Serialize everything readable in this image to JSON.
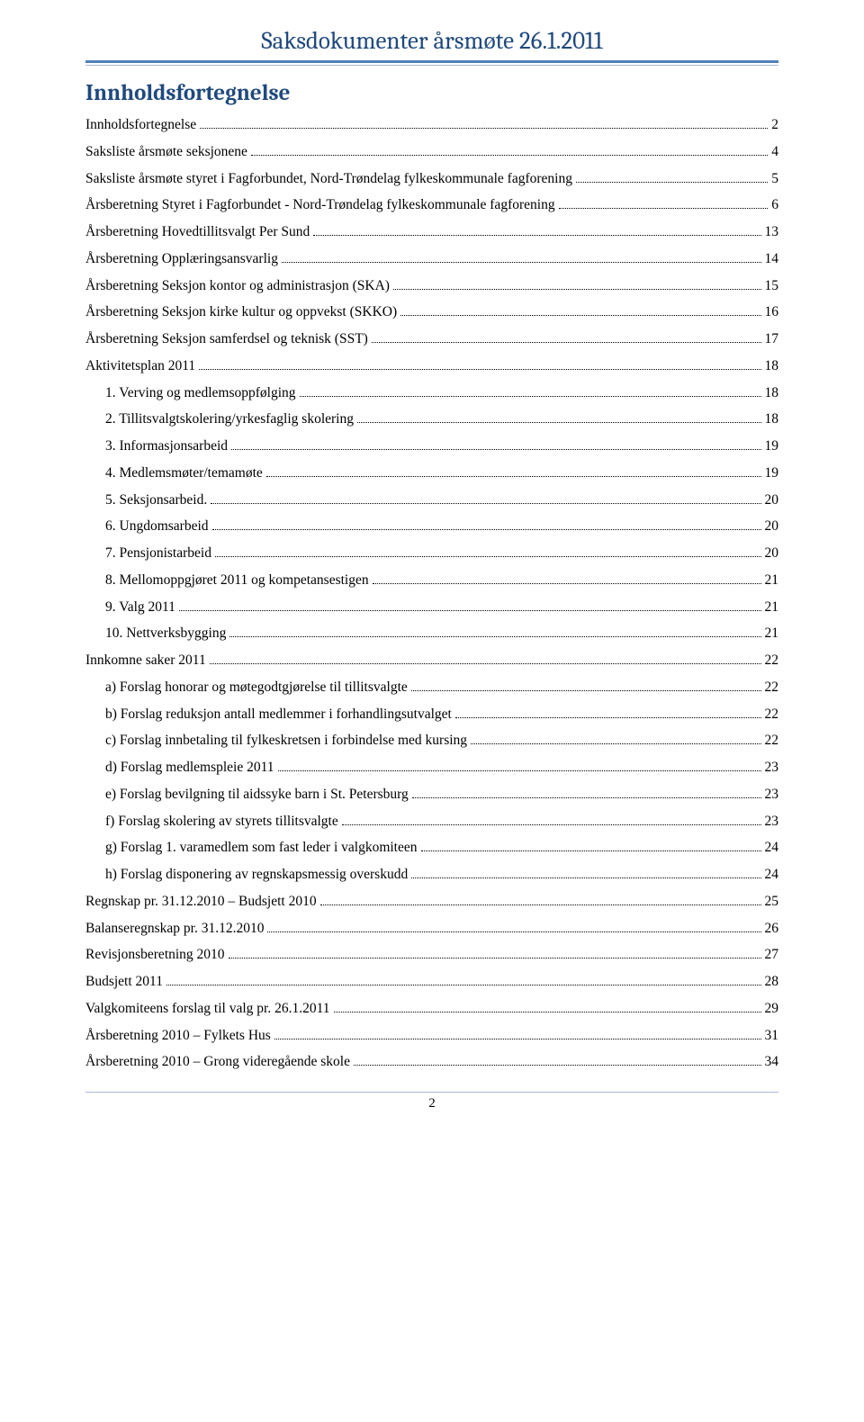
{
  "document": {
    "title": "Saksdokumenter årsmøte 26.1.2011",
    "section_heading": "Innholdsfortegnelse",
    "page_number": "2",
    "title_color": "#1f497d",
    "underline_color": "#4f81bd",
    "font_body": "Times New Roman",
    "font_heading": "Cambria"
  },
  "toc": [
    {
      "label": "Innholdsfortegnelse",
      "page": "2",
      "indent": 0
    },
    {
      "label": "Saksliste årsmøte seksjonene",
      "page": "4",
      "indent": 0
    },
    {
      "label": "Saksliste årsmøte styret i Fagforbundet, Nord-Trøndelag fylkeskommunale fagforening",
      "page": "5",
      "indent": 0
    },
    {
      "label": "Årsberetning Styret i Fagforbundet - Nord-Trøndelag fylkeskommunale fagforening",
      "page": "6",
      "indent": 0
    },
    {
      "label": "Årsberetning Hovedtillitsvalgt Per Sund",
      "page": "13",
      "indent": 0
    },
    {
      "label": "Årsberetning Opplæringsansvarlig",
      "page": "14",
      "indent": 0
    },
    {
      "label": "Årsberetning Seksjon kontor og administrasjon (SKA)",
      "page": "15",
      "indent": 0
    },
    {
      "label": "Årsberetning Seksjon kirke kultur og oppvekst (SKKO)",
      "page": "16",
      "indent": 0
    },
    {
      "label": "Årsberetning Seksjon samferdsel og teknisk (SST)",
      "page": "17",
      "indent": 0
    },
    {
      "label": "Aktivitetsplan 2011",
      "page": "18",
      "indent": 0
    },
    {
      "label": "1. Verving og medlemsoppfølging",
      "page": "18",
      "indent": 1
    },
    {
      "label": "2. Tillitsvalgtskolering/yrkesfaglig skolering",
      "page": "18",
      "indent": 1
    },
    {
      "label": "3. Informasjonsarbeid",
      "page": "19",
      "indent": 1
    },
    {
      "label": "4. Medlemsmøter/temamøte",
      "page": "19",
      "indent": 1
    },
    {
      "label": "5. Seksjonsarbeid.",
      "page": "20",
      "indent": 1
    },
    {
      "label": "6. Ungdomsarbeid",
      "page": "20",
      "indent": 1
    },
    {
      "label": "7. Pensjonistarbeid",
      "page": "20",
      "indent": 1
    },
    {
      "label": "8. Mellomoppgjøret 2011 og kompetansestigen",
      "page": "21",
      "indent": 1
    },
    {
      "label": "9. Valg 2011",
      "page": "21",
      "indent": 1
    },
    {
      "label": "10. Nettverksbygging",
      "page": "21",
      "indent": 1
    },
    {
      "label": "Innkomne saker 2011",
      "page": "22",
      "indent": 0
    },
    {
      "label": "a) Forslag honorar og møtegodtgjørelse til tillitsvalgte",
      "page": "22",
      "indent": 1
    },
    {
      "label": "b) Forslag reduksjon antall medlemmer i forhandlingsutvalget",
      "page": "22",
      "indent": 1
    },
    {
      "label": "c) Forslag innbetaling til fylkeskretsen i forbindelse med kursing",
      "page": "22",
      "indent": 1
    },
    {
      "label": "d) Forslag medlemspleie 2011",
      "page": "23",
      "indent": 1
    },
    {
      "label": "e) Forslag bevilgning til aidssyke barn i St. Petersburg",
      "page": "23",
      "indent": 1
    },
    {
      "label": "f) Forslag skolering av styrets tillitsvalgte",
      "page": "23",
      "indent": 1
    },
    {
      "label": "g) Forslag 1. varamedlem som fast leder i valgkomiteen",
      "page": "24",
      "indent": 1
    },
    {
      "label": "h) Forslag disponering av regnskapsmessig overskudd",
      "page": "24",
      "indent": 1
    },
    {
      "label": "Regnskap pr. 31.12.2010 – Budsjett 2010",
      "page": "25",
      "indent": 0
    },
    {
      "label": "Balanseregnskap pr. 31.12.2010",
      "page": "26",
      "indent": 0
    },
    {
      "label": "Revisjonsberetning 2010",
      "page": "27",
      "indent": 0
    },
    {
      "label": "Budsjett 2011",
      "page": "28",
      "indent": 0
    },
    {
      "label": "Valgkomiteens forslag til valg pr. 26.1.2011",
      "page": "29",
      "indent": 0
    },
    {
      "label": "Årsberetning 2010 – Fylkets Hus",
      "page": "31",
      "indent": 0
    },
    {
      "label": "Årsberetning 2010 – Grong videregående skole",
      "page": "34",
      "indent": 0
    }
  ]
}
